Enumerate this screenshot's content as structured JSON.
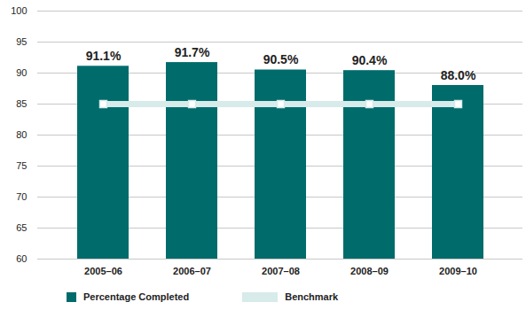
{
  "chart_data": {
    "type": "bar",
    "categories": [
      "2005–06",
      "2006–07",
      "2007–08",
      "2008–09",
      "2009–10"
    ],
    "series": [
      {
        "name": "Percentage Completed",
        "type": "bar",
        "color": "#006b6b",
        "values": [
          91.1,
          91.7,
          90.5,
          90.4,
          88.0
        ],
        "value_labels": [
          "91.1%",
          "91.7%",
          "90.5%",
          "90.4%",
          "88.0%"
        ]
      },
      {
        "name": "Benchmark",
        "type": "line",
        "color": "#d6ebea",
        "marker": "square",
        "values": [
          85,
          85,
          85,
          85,
          85
        ]
      }
    ],
    "ylim": [
      60,
      100
    ],
    "yticks": [
      60,
      65,
      70,
      75,
      80,
      85,
      90,
      95,
      100
    ],
    "grid": true,
    "data_labels": true,
    "legend": "bottom"
  }
}
